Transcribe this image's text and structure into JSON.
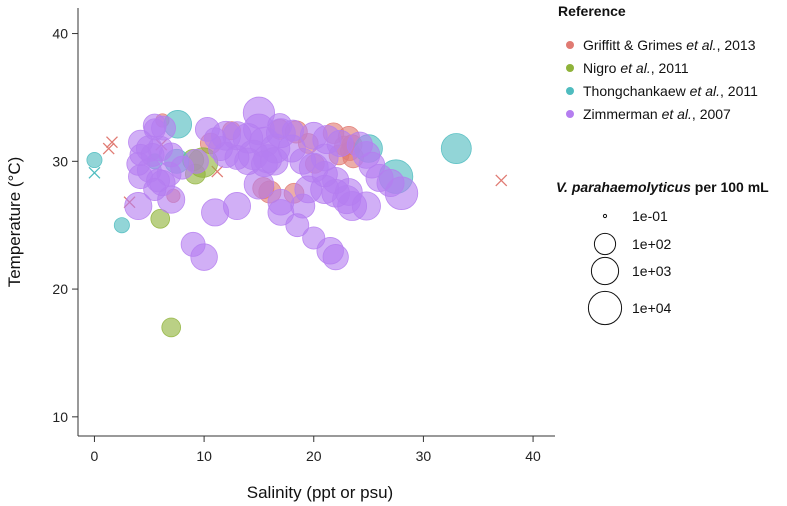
{
  "chart_data": {
    "type": "scatter",
    "xlabel": "Salinity (ppt or psu)",
    "ylabel": "Temperature (°C)",
    "xlim": [
      -1.5,
      42
    ],
    "ylim": [
      8.5,
      42
    ],
    "xticks": [
      0,
      10,
      20,
      30,
      40
    ],
    "yticks": [
      10,
      20,
      30,
      40
    ],
    "grid": false,
    "legend_position": "right",
    "colors": {
      "Griffitt & Grimes et al., 2013": "#e07a72",
      "Nigro et al., 2011": "#8fb33a",
      "Thongchankaew et al., 2011": "#4fbcbf",
      "Zimmerman et al., 2007": "#b57ef0"
    },
    "color_legend": {
      "title": "Reference",
      "entries": [
        {
          "pre": "Griffitt & Grimes ",
          "italic": "et al.",
          "post": ", 2013",
          "key": "Griffitt & Grimes et al., 2013"
        },
        {
          "pre": "Nigro ",
          "italic": "et al.",
          "post": ", 2011",
          "key": "Nigro et al., 2011"
        },
        {
          "pre": "Thongchankaew ",
          "italic": "et al.",
          "post": ", 2011",
          "key": "Thongchankaew et al., 2011"
        },
        {
          "pre": "Zimmerman ",
          "italic": "et al.",
          "post": ", 2007",
          "key": "Zimmerman et al., 2007"
        }
      ]
    },
    "size_legend": {
      "title_italic": "V. parahaemolyticus",
      "title_rest": " per 100 mL",
      "entries": [
        {
          "label": "1e-01",
          "value": 0.1
        },
        {
          "label": "1e+02",
          "value": 100
        },
        {
          "label": "1e+03",
          "value": 1000
        },
        {
          "label": "1e+04",
          "value": 10000
        }
      ]
    },
    "series": [
      {
        "name": "Griffitt & Grimes et al., 2013",
        "points": [
          [
            23.2,
            31.9,
            100
          ],
          [
            23.5,
            31.3,
            60
          ],
          [
            23.3,
            30.8,
            40
          ],
          [
            23.6,
            30.3,
            80
          ],
          [
            22.3,
            30.5,
            60
          ],
          [
            22.8,
            31.2,
            60
          ],
          [
            21.8,
            32.2,
            80
          ],
          [
            19.5,
            31.4,
            60
          ],
          [
            16.0,
            27.6,
            150
          ],
          [
            15.4,
            27.9,
            100
          ],
          [
            16.9,
            32.5,
            60
          ],
          [
            18.4,
            32.3,
            150
          ],
          [
            12.5,
            32.4,
            30
          ],
          [
            10.6,
            31.4,
            80
          ],
          [
            6.2,
            33.2,
            5
          ],
          [
            7.2,
            27.3,
            5
          ],
          [
            20.1,
            29.8,
            40
          ],
          [
            18.2,
            27.5,
            60
          ]
        ],
        "nondetect": [
          [
            1.6,
            31.5
          ],
          [
            1.3,
            31.0
          ],
          [
            6.1,
            31.3
          ],
          [
            3.2,
            26.8
          ],
          [
            11.2,
            29.2
          ],
          [
            37.1,
            28.5
          ]
        ]
      },
      {
        "name": "Nigro et al., 2011",
        "points": [
          [
            9.9,
            29.9,
            2500
          ],
          [
            9.0,
            30.1,
            100
          ],
          [
            6.0,
            25.5,
            40
          ],
          [
            7.0,
            17.0,
            40
          ],
          [
            9.2,
            29.0,
            60
          ]
        ],
        "nondetect": []
      },
      {
        "name": "Thongchankaew et al., 2011",
        "points": [
          [
            27.5,
            28.8,
            12000
          ],
          [
            33.0,
            31.0,
            3000
          ],
          [
            25.0,
            31.0,
            1200
          ],
          [
            7.6,
            32.9,
            1200
          ],
          [
            7.5,
            30.0,
            300
          ],
          [
            0.0,
            30.1,
            10
          ],
          [
            2.5,
            25.0,
            10
          ],
          [
            5.5,
            30.0,
            10
          ]
        ],
        "nondetect": [
          [
            0.0,
            29.1
          ]
        ]
      },
      {
        "name": "Zimmerman et al., 2007",
        "points": [
          [
            15.0,
            33.8,
            5000
          ],
          [
            15.0,
            32.5,
            4000
          ],
          [
            15.5,
            31.5,
            3000
          ],
          [
            14.5,
            30.5,
            2500
          ],
          [
            16.5,
            31.0,
            2000
          ],
          [
            14.0,
            31.8,
            2500
          ],
          [
            13.0,
            32.0,
            1500
          ],
          [
            12.0,
            32.0,
            2000
          ],
          [
            17.0,
            32.2,
            2000
          ],
          [
            18.0,
            31.0,
            1000
          ],
          [
            20.0,
            32.0,
            900
          ],
          [
            21.2,
            31.7,
            1500
          ],
          [
            22.4,
            31.4,
            700
          ],
          [
            21.0,
            30.3,
            900
          ],
          [
            20.0,
            29.5,
            2000
          ],
          [
            19.0,
            30.0,
            600
          ],
          [
            21.0,
            29.0,
            500
          ],
          [
            22.0,
            28.5,
            700
          ],
          [
            24.2,
            31.3,
            500
          ],
          [
            24.8,
            30.5,
            900
          ],
          [
            25.3,
            29.7,
            600
          ],
          [
            26.0,
            28.7,
            1000
          ],
          [
            27.0,
            28.3,
            1000
          ],
          [
            28.0,
            27.5,
            8000
          ],
          [
            21.0,
            27.8,
            1500
          ],
          [
            22.0,
            27.5,
            1200
          ],
          [
            23.0,
            27.0,
            1500
          ],
          [
            23.5,
            26.5,
            2000
          ],
          [
            23.2,
            27.6,
            900
          ],
          [
            24.8,
            26.5,
            1500
          ],
          [
            19.5,
            27.8,
            900
          ],
          [
            17.0,
            26.8,
            600
          ],
          [
            15.0,
            28.2,
            2500
          ],
          [
            17.0,
            26.0,
            600
          ],
          [
            18.5,
            25.0,
            200
          ],
          [
            19.0,
            26.5,
            300
          ],
          [
            13.0,
            26.5,
            1000
          ],
          [
            11.0,
            26.0,
            1000
          ],
          [
            7.0,
            27.0,
            1000
          ],
          [
            4.0,
            26.5,
            1000
          ],
          [
            9.0,
            23.5,
            300
          ],
          [
            10.0,
            22.5,
            800
          ],
          [
            20.0,
            24.0,
            150
          ],
          [
            21.5,
            23.0,
            800
          ],
          [
            22.0,
            22.5,
            500
          ],
          [
            4.0,
            29.8,
            200
          ],
          [
            5.0,
            29.3,
            300
          ],
          [
            5.8,
            28.5,
            200
          ],
          [
            6.2,
            28.3,
            500
          ],
          [
            5.5,
            27.8,
            150
          ],
          [
            4.2,
            28.8,
            300
          ],
          [
            6.8,
            29.0,
            300
          ],
          [
            7.0,
            30.5,
            300
          ],
          [
            8.0,
            29.5,
            200
          ],
          [
            9.3,
            30.0,
            300
          ],
          [
            6.0,
            31.0,
            400
          ],
          [
            5.0,
            31.0,
            600
          ],
          [
            4.2,
            31.5,
            300
          ],
          [
            4.2,
            30.5,
            100
          ],
          [
            5.5,
            32.5,
            100
          ],
          [
            6.3,
            32.6,
            300
          ],
          [
            5.5,
            32.8,
            200
          ],
          [
            5.3,
            30.5,
            200
          ],
          [
            10.3,
            32.5,
            300
          ],
          [
            11.0,
            31.8,
            100
          ],
          [
            11.5,
            31.0,
            300
          ],
          [
            12.0,
            30.5,
            500
          ],
          [
            13.0,
            30.3,
            300
          ],
          [
            14.0,
            30.0,
            800
          ],
          [
            15.8,
            30.2,
            1500
          ],
          [
            16.4,
            30.0,
            1200
          ],
          [
            15.5,
            29.8,
            600
          ],
          [
            16.9,
            32.8,
            300
          ],
          [
            18.1,
            32.4,
            100
          ]
        ],
        "nondetect": []
      }
    ]
  }
}
